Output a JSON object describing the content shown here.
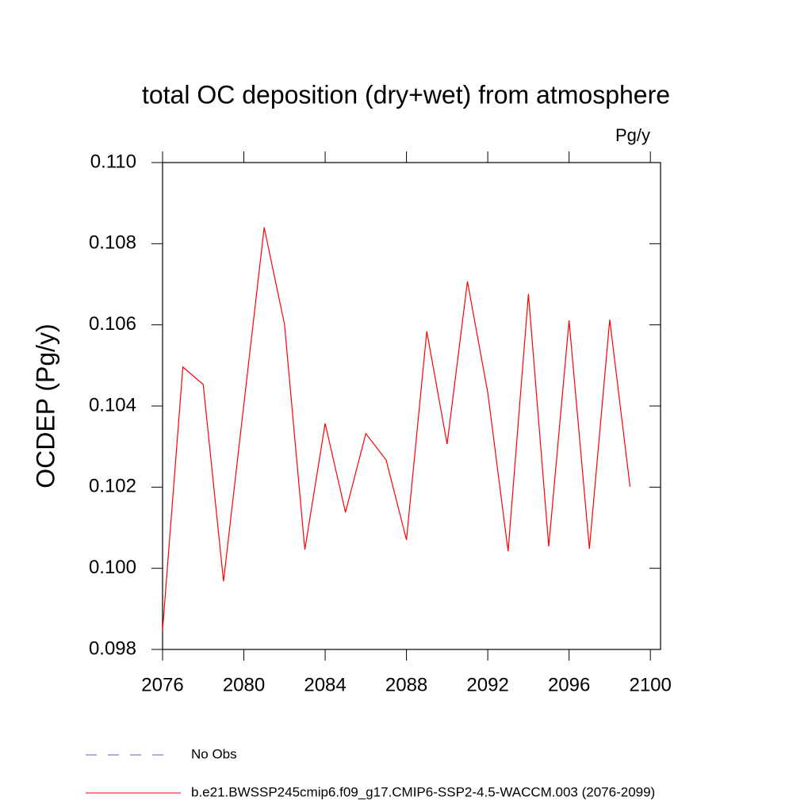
{
  "chart_data": {
    "type": "line",
    "title": "total OC deposition (dry+wet) from atmosphere",
    "units": "Pg/y",
    "y_label": "OCDEP  (Pg/y)",
    "x": [
      2076,
      2077,
      2078,
      2079,
      2080,
      2081,
      2082,
      2083,
      2084,
      2085,
      2086,
      2087,
      2088,
      2089,
      2090,
      2091,
      2092,
      2093,
      2094,
      2095,
      2096,
      2097,
      2098,
      2099
    ],
    "series": [
      {
        "name": "No Obs",
        "color": "#6a5acd",
        "dashed": true,
        "values": [
          null,
          null,
          null,
          null,
          null,
          null,
          null,
          null,
          null,
          null,
          null,
          null,
          null,
          null,
          null,
          null,
          null,
          null,
          null,
          null,
          null,
          null,
          null,
          null
        ]
      },
      {
        "name": "b.e21.BWSSP245cmip6.f09_g17.CMIP6-SSP2-4.5-WACCM.003 (2076-2099)",
        "color": "#ff0000",
        "dashed": false,
        "values": [
          0.09847,
          0.10496,
          0.10453,
          0.09968,
          0.10404,
          0.1084,
          0.10601,
          0.10046,
          0.10357,
          0.10138,
          0.10332,
          0.10267,
          0.1007,
          0.10584,
          0.10306,
          0.10707,
          0.10433,
          0.10042,
          0.10676,
          0.10054,
          0.10611,
          0.10048,
          0.10613,
          0.10201
        ]
      }
    ],
    "xlim": [
      2076,
      2100.5
    ],
    "xticks": [
      2076,
      2080,
      2084,
      2088,
      2092,
      2096,
      2100
    ],
    "ylim": [
      0.098,
      0.11
    ],
    "yticks": [
      {
        "value": 0.098,
        "label": "0.098"
      },
      {
        "value": 0.1,
        "label": "0.100"
      },
      {
        "value": 0.102,
        "label": "0.102"
      },
      {
        "value": 0.104,
        "label": "0.104"
      },
      {
        "value": 0.106,
        "label": "0.106"
      },
      {
        "value": 0.108,
        "label": "0.108"
      },
      {
        "value": 0.11,
        "label": "0.110"
      }
    ],
    "grid": false
  }
}
